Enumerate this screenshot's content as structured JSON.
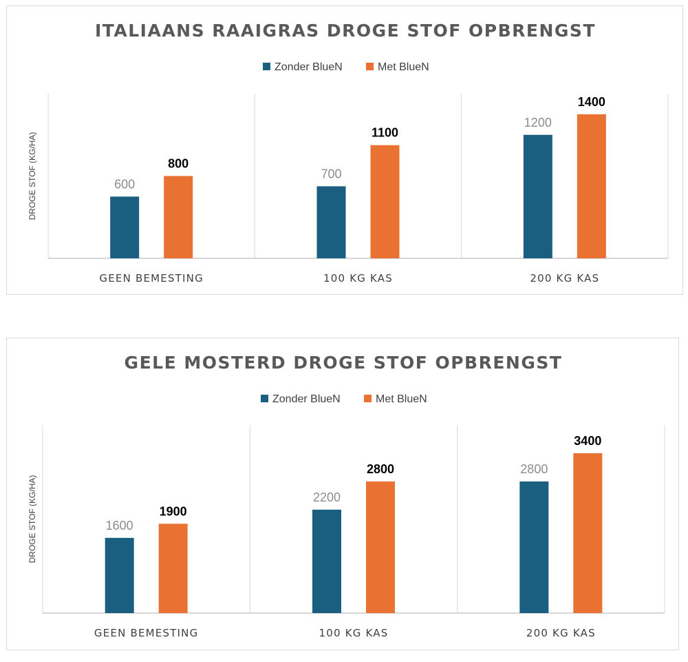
{
  "colors": {
    "series_a": "#1a5e80",
    "series_b": "#e97132",
    "grid": "#d9d9d9",
    "axis": "#bfbfbf"
  },
  "chart_data": [
    {
      "type": "bar",
      "title": "ITALIAANS RAAIGRAS DROGE STOF OPBRENGST",
      "ylabel": "DROGE STOF (KG/HA)",
      "xlabel": "",
      "categories": [
        "GEEN BEMESTING",
        "100 KG KAS",
        "200 KG KAS"
      ],
      "series": [
        {
          "name": "Zonder BlueN",
          "values": [
            600,
            700,
            1200
          ]
        },
        {
          "name": "Met BlueN",
          "values": [
            800,
            1100,
            1400
          ]
        }
      ],
      "ylim": [
        0,
        1600
      ],
      "legend": "top-center",
      "grid": false,
      "category_separators": true
    },
    {
      "type": "bar",
      "title": "GELE MOSTERD DROGE STOF OPBRENGST",
      "ylabel": "DROGE STOF (KG/HA)",
      "xlabel": "",
      "categories": [
        "GEEN BEMESTING",
        "100 KG KAS",
        "200 KG KAS"
      ],
      "series": [
        {
          "name": "Zonder BlueN",
          "values": [
            1600,
            2200,
            2800
          ]
        },
        {
          "name": "Met BlueN",
          "values": [
            1900,
            2800,
            3400
          ]
        }
      ],
      "ylim": [
        0,
        4000
      ],
      "legend": "top-center",
      "grid": false,
      "category_separators": true
    }
  ]
}
